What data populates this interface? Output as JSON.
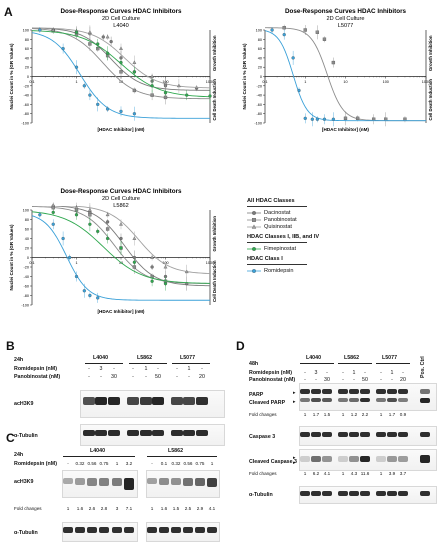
{
  "panels": {
    "A": "A",
    "B": "B",
    "C": "C",
    "D": "D"
  },
  "chart_data": [
    {
      "type": "line",
      "title": "Dose-Response Curves HDAC Inhibitors",
      "subtitle": "2D Cell Culture",
      "cell_line": "L4040",
      "xlabel": "[HDAC Inhibitor] (nM)",
      "ylabel": "Nuclei Count in % (GR Values)",
      "right_labels": [
        "Growth Inhibition",
        "Cell Death Induction"
      ],
      "xscale": "log",
      "xlim": [
        0.1,
        1000
      ],
      "ylim": [
        -100,
        100
      ],
      "x_ticks": [
        "0.1",
        "1",
        "10",
        "100",
        "1000"
      ],
      "y_ticks": [
        "100",
        "80",
        "60",
        "40",
        "20",
        "0",
        "-20",
        "-40",
        "-60",
        "-80",
        "-100"
      ],
      "series": [
        {
          "name": "Dacinostat",
          "color": "#7a7a7a",
          "marker": "circle",
          "x": [
            0.3,
            1,
            2,
            4,
            6,
            10,
            20,
            50,
            100,
            500
          ],
          "y": [
            100,
            95,
            92,
            85,
            75,
            40,
            10,
            -10,
            -20,
            -25
          ],
          "curve": {
            "ic50": 6,
            "top": 105,
            "bottom": -30,
            "hill": 1.3
          }
        },
        {
          "name": "Panobinostat",
          "color": "#8c8c8c",
          "marker": "square",
          "x": [
            0.3,
            1,
            2,
            3,
            5,
            10,
            20,
            50,
            100
          ],
          "y": [
            98,
            90,
            70,
            60,
            45,
            10,
            -30,
            -40,
            -45
          ],
          "curve": {
            "ic50": 4,
            "top": 105,
            "bottom": -48,
            "hill": 1.2
          }
        },
        {
          "name": "Quisinostat",
          "color": "#a0a0a0",
          "marker": "triangle",
          "x": [
            0.3,
            1,
            2,
            5,
            10,
            20,
            50,
            100,
            200
          ],
          "y": [
            100,
            98,
            95,
            85,
            60,
            30,
            0,
            -15,
            -20
          ],
          "curve": {
            "ic50": 12,
            "top": 105,
            "bottom": -25,
            "hill": 1.2
          }
        },
        {
          "name": "Fimepinostat",
          "color": "#2fa84f",
          "marker": "circle",
          "x": [
            1,
            3,
            5,
            10,
            20,
            50,
            100,
            300,
            1000
          ],
          "y": [
            95,
            70,
            50,
            30,
            10,
            -20,
            -35,
            -40,
            -42
          ],
          "curve": {
            "ic50": 10,
            "top": 100,
            "bottom": -45,
            "hill": 1.0
          }
        },
        {
          "name": "Romidepsin",
          "color": "#3aa0d8",
          "marker": "circle",
          "x": [
            0.15,
            0.5,
            1,
            1.5,
            2,
            3,
            5,
            10,
            20
          ],
          "y": [
            100,
            60,
            20,
            -20,
            -40,
            -60,
            -70,
            -75,
            -80
          ],
          "curve": {
            "ic50": 1.2,
            "top": 100,
            "bottom": -90,
            "hill": 1.4
          }
        }
      ]
    },
    {
      "type": "line",
      "title": "Dose-Response Curves HDAC Inhibitors",
      "subtitle": "2D Cell Culture",
      "cell_line": "L5077",
      "xlabel": "[HDAC Inhibitor] (nM)",
      "ylabel": "Nuclei Count in % (GR Values)",
      "right_labels": [
        "Growth Inhibition",
        "Cell Death Induction"
      ],
      "xscale": "log",
      "xlim": [
        0.1,
        1000
      ],
      "ylim": [
        -100,
        100
      ],
      "x_ticks": [
        "0.1",
        "1",
        "10",
        "100",
        "1000"
      ],
      "y_ticks": [
        "100",
        "80",
        "60",
        "40",
        "20",
        "0",
        "-20",
        "-40",
        "-60",
        "-80",
        "-100"
      ],
      "series": [
        {
          "name": "Panobinostat",
          "color": "#8c8c8c",
          "marker": "square",
          "x": [
            0.3,
            1,
            2,
            3,
            5,
            10,
            20,
            50,
            100,
            300
          ],
          "y": [
            105,
            100,
            95,
            80,
            30,
            -90,
            -90,
            -92,
            -92,
            -92
          ],
          "curve": {
            "ic50": 3.5,
            "top": 105,
            "bottom": -95,
            "hill": 2.2
          }
        },
        {
          "name": "Romidepsin",
          "color": "#3aa0d8",
          "marker": "circle",
          "x": [
            0.15,
            0.3,
            0.5,
            0.7,
            1,
            1.5,
            2,
            3,
            5
          ],
          "y": [
            100,
            90,
            40,
            -30,
            -90,
            -92,
            -92,
            -92,
            -92
          ],
          "curve": {
            "ic50": 0.5,
            "top": 102,
            "bottom": -95,
            "hill": 2.5
          }
        }
      ]
    },
    {
      "type": "line",
      "title": "Dose-Response Curves HDAC Inhibitors",
      "subtitle": "2D Cell Culture",
      "cell_line": "L5862",
      "xlabel": "[HDAC Inhibitor] (nM)",
      "ylabel": "Nuclei Count in % (GR Values)",
      "right_labels": [
        "Growth Inhibition",
        "Cell Death Induction"
      ],
      "xscale": "log",
      "xlim": [
        0.1,
        1000
      ],
      "ylim": [
        -100,
        100
      ],
      "x_ticks": [
        "0.1",
        "1",
        "10",
        "100",
        "1000"
      ],
      "y_ticks": [
        "100",
        "80",
        "60",
        "40",
        "20",
        "0",
        "-20",
        "-40",
        "-60",
        "-80",
        "-100"
      ],
      "series": [
        {
          "name": "Dacinostat",
          "color": "#7a7a7a",
          "marker": "circle",
          "x": [
            0.3,
            1,
            2,
            5,
            10,
            20,
            50,
            100,
            300
          ],
          "y": [
            108,
            100,
            95,
            75,
            40,
            0,
            -20,
            -40,
            -55
          ],
          "curve": {
            "ic50": 12,
            "top": 110,
            "bottom": -60,
            "hill": 1.3
          }
        },
        {
          "name": "Panobinostat",
          "color": "#8c8c8c",
          "marker": "square",
          "x": [
            0.3,
            1,
            2,
            5,
            10,
            20,
            50,
            100
          ],
          "y": [
            105,
            100,
            90,
            60,
            20,
            -20,
            -40,
            -50
          ],
          "curve": {
            "ic50": 7,
            "top": 108,
            "bottom": -55,
            "hill": 1.3
          }
        },
        {
          "name": "Quisinostat",
          "color": "#a0a0a0",
          "marker": "triangle",
          "x": [
            0.3,
            1,
            2,
            5,
            10,
            20,
            50,
            100,
            300
          ],
          "y": [
            110,
            105,
            100,
            90,
            70,
            40,
            0,
            -20,
            -30
          ],
          "curve": {
            "ic50": 25,
            "top": 110,
            "bottom": -35,
            "hill": 1.3
          }
        },
        {
          "name": "Fimepinostat",
          "color": "#2fa84f",
          "marker": "circle",
          "x": [
            0.3,
            1,
            2,
            3,
            5,
            10,
            20,
            50,
            100
          ],
          "y": [
            95,
            90,
            70,
            55,
            40,
            20,
            -10,
            -50,
            -55
          ],
          "curve": {
            "ic50": 4,
            "top": 100,
            "bottom": -55,
            "hill": 1.0
          }
        },
        {
          "name": "Romidepsin",
          "color": "#3aa0d8",
          "marker": "circle",
          "x": [
            0.15,
            0.3,
            0.5,
            0.7,
            1,
            1.5,
            2,
            3
          ],
          "y": [
            90,
            70,
            40,
            0,
            -40,
            -70,
            -80,
            -85
          ],
          "curve": {
            "ic50": 0.6,
            "top": 95,
            "bottom": -90,
            "hill": 1.8
          }
        }
      ]
    }
  ],
  "legend": {
    "groups": [
      {
        "title": "All HDAC Classes",
        "items": [
          {
            "name": "Dacinostat",
            "color": "#7a7a7a",
            "marker": "circle"
          },
          {
            "name": "Panobinostat",
            "color": "#8c8c8c",
            "marker": "square"
          },
          {
            "name": "Quisinostat",
            "color": "#a0a0a0",
            "marker": "triangle"
          }
        ]
      },
      {
        "title": "HDAC Classes I, IIB, and IV",
        "items": [
          {
            "name": "Fimepinostat",
            "color": "#2fa84f",
            "marker": "circle"
          }
        ]
      },
      {
        "title": "HDAC Class I",
        "items": [
          {
            "name": "Romidepsin",
            "color": "#3aa0d8",
            "marker": "circle"
          }
        ]
      }
    ]
  },
  "blotB": {
    "time": "24h",
    "row1": "Romidepsin (nM)",
    "row2": "Panobinostat (nM)",
    "cell_lines": [
      "L4040",
      "L5862",
      "L5077"
    ],
    "romi": [
      "-",
      "3",
      "-",
      "-",
      "1",
      "-",
      "-",
      "1",
      "-"
    ],
    "pano": [
      "-",
      "-",
      "30",
      "-",
      "-",
      "50",
      "-",
      "-",
      "20"
    ],
    "bands": [
      "acH3K9",
      "α-Tubulin"
    ]
  },
  "blotC": {
    "time": "24h",
    "row1": "Romidepsin (nM)",
    "cell_lines": [
      "L4040",
      "L5862"
    ],
    "doses_left": [
      "-",
      "0.32",
      "0.56",
      "0.75",
      "1",
      "3.2"
    ],
    "doses_right": [
      "-",
      "0.1",
      "0.32",
      "0.56",
      "0.75",
      "1"
    ],
    "bands": [
      "acH3K9",
      "α-Tubulin"
    ],
    "fold_label": "Fold changes",
    "fold_left": [
      "1",
      "1.6",
      "2.6",
      "2.8",
      "3",
      "7.1"
    ],
    "fold_right": [
      "1",
      "1.6",
      "1.5",
      "2.5",
      "2.9",
      "4.1"
    ]
  },
  "blotD": {
    "time": "48h",
    "row1": "Romidepsin (nM)",
    "row2": "Panobinostat (nM)",
    "cell_lines": [
      "L4040",
      "L5862",
      "L5077"
    ],
    "pos_ctrl": "Pos. Ctrl",
    "romi": [
      "-",
      "3",
      "-",
      "-",
      "1",
      "-",
      "-",
      "1",
      "-"
    ],
    "pano": [
      "-",
      "-",
      "30",
      "-",
      "-",
      "50",
      "-",
      "-",
      "20"
    ],
    "parp": "PARP",
    "cleaved_parp": "Cleaved PARP",
    "fold_label": "Fold changes",
    "fold_parp": [
      "1",
      "1.7",
      "1.5",
      "1",
      "1.2",
      "2.2",
      "1",
      "1.7",
      "0.9"
    ],
    "caspase": "Caspase 3",
    "cleaved_casp": "Cleaved Caspase 3",
    "fold_casp": [
      "1",
      "6.2",
      "4.1",
      "1",
      "4.3",
      "11.6",
      "1",
      "3.9",
      "3.7"
    ],
    "tubulin": "α-Tubulin"
  }
}
